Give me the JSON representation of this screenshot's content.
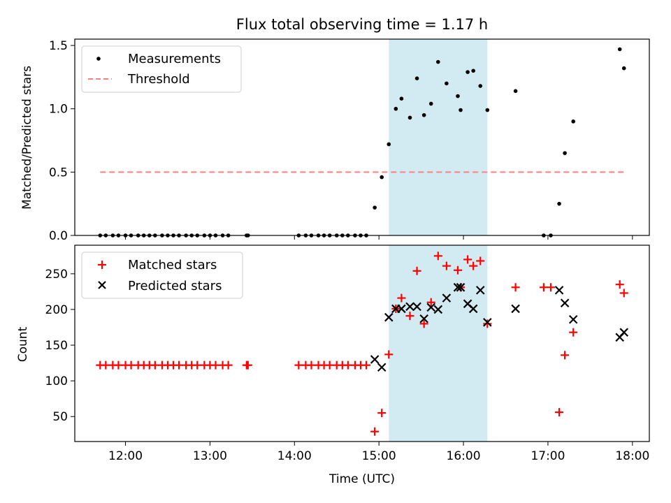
{
  "chart_data": [
    {
      "type": "scatter",
      "title": "Flux total observing time = 1.17 h",
      "xlabel": "",
      "ylabel": "Matched/Predicted stars",
      "xlim": [
        "11:24",
        "18:12"
      ],
      "ylim": [
        0,
        1.55
      ],
      "yticks": [
        0.0,
        0.5,
        1.0,
        1.5
      ],
      "ytick_labels": [
        "0.0",
        "0.5",
        "1.0",
        "1.5"
      ],
      "shaded_interval": {
        "x0": "15:07",
        "x1": "16:17",
        "color": "#add8e6"
      },
      "legend": {
        "position": "upper-left"
      },
      "series": [
        {
          "name": "Measurements",
          "marker": "dot",
          "color": "#000000",
          "points": [
            [
              "11:42",
              0
            ],
            [
              "11:46",
              0
            ],
            [
              "11:51",
              0
            ],
            [
              "11:55",
              0
            ],
            [
              "12:00",
              0
            ],
            [
              "12:04",
              0
            ],
            [
              "12:09",
              0
            ],
            [
              "12:13",
              0
            ],
            [
              "12:17",
              0
            ],
            [
              "12:21",
              0
            ],
            [
              "12:26",
              0
            ],
            [
              "12:30",
              0
            ],
            [
              "12:34",
              0
            ],
            [
              "12:38",
              0
            ],
            [
              "12:43",
              0
            ],
            [
              "12:47",
              0
            ],
            [
              "12:51",
              0
            ],
            [
              "12:56",
              0
            ],
            [
              "13:00",
              0
            ],
            [
              "13:04",
              0
            ],
            [
              "13:09",
              0
            ],
            [
              "13:13",
              0
            ],
            [
              "13:26",
              0
            ],
            [
              "13:27",
              0
            ],
            [
              "14:03",
              0
            ],
            [
              "14:08",
              0
            ],
            [
              "14:12",
              0
            ],
            [
              "14:17",
              0
            ],
            [
              "14:21",
              0
            ],
            [
              "14:25",
              0
            ],
            [
              "14:30",
              0
            ],
            [
              "14:34",
              0
            ],
            [
              "14:38",
              0
            ],
            [
              "14:43",
              0
            ],
            [
              "14:47",
              0
            ],
            [
              "14:51",
              0
            ],
            [
              "14:57",
              0.22
            ],
            [
              "15:02",
              0.46
            ],
            [
              "15:07",
              0.72
            ],
            [
              "15:12",
              1.0
            ],
            [
              "15:16",
              1.08
            ],
            [
              "15:22",
              0.93
            ],
            [
              "15:27",
              1.24
            ],
            [
              "15:32",
              0.95
            ],
            [
              "15:37",
              1.04
            ],
            [
              "15:42",
              1.37
            ],
            [
              "15:48",
              1.2
            ],
            [
              "15:56",
              1.1
            ],
            [
              "15:58",
              0.99
            ],
            [
              "16:03",
              1.29
            ],
            [
              "16:07",
              1.3
            ],
            [
              "16:12",
              1.18
            ],
            [
              "16:17",
              0.99
            ],
            [
              "16:37",
              1.14
            ],
            [
              "16:57",
              0
            ],
            [
              "17:02",
              0
            ],
            [
              "17:08",
              0.25
            ],
            [
              "17:12",
              0.65
            ],
            [
              "17:18",
              0.9
            ],
            [
              "17:51",
              1.47
            ],
            [
              "17:54",
              1.32
            ]
          ]
        },
        {
          "name": "Threshold",
          "line": "dashed",
          "color": "#ff7f7f",
          "x": [
            "11:42",
            "17:54"
          ],
          "y": [
            0.5,
            0.5
          ]
        }
      ]
    },
    {
      "type": "scatter",
      "title": "",
      "xlabel": "Time (UTC)",
      "ylabel": "Count",
      "xlim": [
        "11:24",
        "18:12"
      ],
      "ylim": [
        15,
        290
      ],
      "yticks": [
        50,
        100,
        150,
        200,
        250
      ],
      "ytick_labels": [
        "50",
        "100",
        "150",
        "200",
        "250"
      ],
      "xticks": [
        "12:00",
        "13:00",
        "14:00",
        "15:00",
        "16:00",
        "17:00",
        "18:00"
      ],
      "xtick_labels": [
        "12:00",
        "13:00",
        "14:00",
        "15:00",
        "16:00",
        "17:00",
        "18:00"
      ],
      "shaded_interval": {
        "x0": "15:07",
        "x1": "16:17",
        "color": "#add8e6"
      },
      "legend": {
        "position": "upper-left"
      },
      "series": [
        {
          "name": "Matched stars",
          "marker": "plus",
          "color": "#ff0000",
          "points": [
            [
              "11:42",
              122
            ],
            [
              "11:46",
              122
            ],
            [
              "11:51",
              122
            ],
            [
              "11:55",
              122
            ],
            [
              "12:00",
              122
            ],
            [
              "12:04",
              122
            ],
            [
              "12:09",
              122
            ],
            [
              "12:13",
              122
            ],
            [
              "12:17",
              122
            ],
            [
              "12:21",
              122
            ],
            [
              "12:26",
              122
            ],
            [
              "12:30",
              122
            ],
            [
              "12:34",
              122
            ],
            [
              "12:38",
              122
            ],
            [
              "12:43",
              122
            ],
            [
              "12:47",
              122
            ],
            [
              "12:51",
              122
            ],
            [
              "12:56",
              122
            ],
            [
              "13:00",
              122
            ],
            [
              "13:04",
              122
            ],
            [
              "13:09",
              122
            ],
            [
              "13:13",
              122
            ],
            [
              "13:26",
              122
            ],
            [
              "13:27",
              122
            ],
            [
              "14:03",
              122
            ],
            [
              "14:08",
              122
            ],
            [
              "14:12",
              122
            ],
            [
              "14:17",
              122
            ],
            [
              "14:21",
              122
            ],
            [
              "14:25",
              122
            ],
            [
              "14:30",
              122
            ],
            [
              "14:34",
              122
            ],
            [
              "14:38",
              122
            ],
            [
              "14:43",
              122
            ],
            [
              "14:47",
              122
            ],
            [
              "14:51",
              122
            ],
            [
              "14:57",
              29
            ],
            [
              "15:02",
              55
            ],
            [
              "15:07",
              137
            ],
            [
              "15:12",
              201
            ],
            [
              "15:16",
              216
            ],
            [
              "15:22",
              191
            ],
            [
              "15:27",
              254
            ],
            [
              "15:32",
              180
            ],
            [
              "15:37",
              210
            ],
            [
              "15:42",
              275
            ],
            [
              "15:48",
              261
            ],
            [
              "15:56",
              255
            ],
            [
              "15:58",
              231
            ],
            [
              "16:03",
              270
            ],
            [
              "16:07",
              261
            ],
            [
              "16:12",
              268
            ],
            [
              "16:17",
              180
            ],
            [
              "16:37",
              231
            ],
            [
              "16:57",
              231
            ],
            [
              "17:02",
              231
            ],
            [
              "17:08",
              56
            ],
            [
              "17:12",
              136
            ],
            [
              "17:18",
              168
            ],
            [
              "17:51",
              235
            ],
            [
              "17:54",
              223
            ]
          ]
        },
        {
          "name": "Predicted stars",
          "marker": "x",
          "color": "#000000",
          "points": [
            [
              "14:57",
              130
            ],
            [
              "15:02",
              119
            ],
            [
              "15:07",
              189
            ],
            [
              "15:12",
              201
            ],
            [
              "15:16",
              201
            ],
            [
              "15:22",
              204
            ],
            [
              "15:27",
              204
            ],
            [
              "15:32",
              187
            ],
            [
              "15:37",
              203
            ],
            [
              "15:42",
              200
            ],
            [
              "15:48",
              216
            ],
            [
              "15:56",
              231
            ],
            [
              "15:58",
              231
            ],
            [
              "16:03",
              208
            ],
            [
              "16:07",
              201
            ],
            [
              "16:12",
              227
            ],
            [
              "16:17",
              182
            ],
            [
              "16:37",
              201
            ],
            [
              "17:08",
              227
            ],
            [
              "17:12",
              209
            ],
            [
              "17:18",
              186
            ],
            [
              "17:51",
              161
            ],
            [
              "17:54",
              168
            ]
          ]
        }
      ]
    }
  ]
}
